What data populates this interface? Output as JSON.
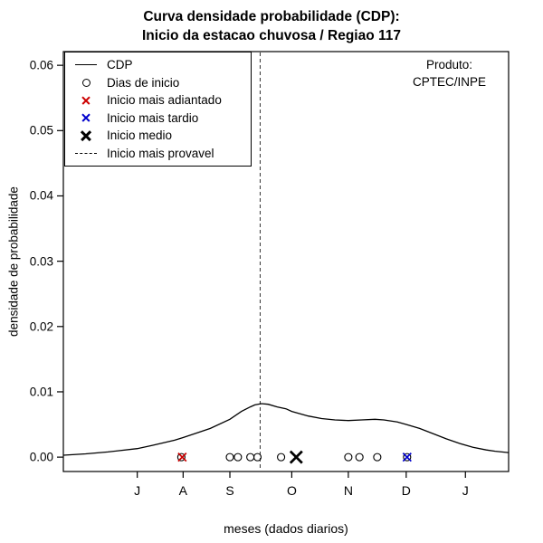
{
  "colors": {
    "red": "#cc0000",
    "blue": "#0000cc",
    "black": "#000000",
    "dashed_line": "#333333"
  },
  "chart_data": {
    "type": "line",
    "title": "Curva densidade probabilidade (CDP): Inicio da estacao chuvosa / Regiao 117",
    "title_lines": [
      "Curva densidade probabilidade (CDP):",
      "Inicio da estacao chuvosa / Regiao 117"
    ],
    "xlabel": "meses (dados diarios)",
    "ylabel": "densidade de probabilidade",
    "annotation_lines": [
      "Produto:",
      "CPTEC/INPE"
    ],
    "y_ticks": [
      0,
      0.01,
      0.02,
      0.03,
      0.04,
      0.05,
      0.06
    ],
    "ylim": [
      -0.0022,
      0.0621
    ],
    "x_ticks": [
      {
        "label": "J",
        "pos": 0.166
      },
      {
        "label": "A",
        "pos": 0.269
      },
      {
        "label": "S",
        "pos": 0.374
      },
      {
        "label": "O",
        "pos": 0.513
      },
      {
        "label": "N",
        "pos": 0.64
      },
      {
        "label": "D",
        "pos": 0.77
      },
      {
        "label": "J",
        "pos": 0.903
      }
    ],
    "curve": {
      "name": "CDP",
      "points": [
        [
          0.0,
          0.0003
        ],
        [
          0.05,
          0.0005
        ],
        [
          0.1,
          0.0008
        ],
        [
          0.166,
          0.0013
        ],
        [
          0.2,
          0.0018
        ],
        [
          0.25,
          0.0026
        ],
        [
          0.269,
          0.003
        ],
        [
          0.3,
          0.0037
        ],
        [
          0.33,
          0.0044
        ],
        [
          0.374,
          0.0058
        ],
        [
          0.4,
          0.007
        ],
        [
          0.42,
          0.0077
        ],
        [
          0.43,
          0.008
        ],
        [
          0.445,
          0.0082
        ],
        [
          0.46,
          0.0081
        ],
        [
          0.48,
          0.0077
        ],
        [
          0.5,
          0.0074
        ],
        [
          0.513,
          0.007
        ],
        [
          0.55,
          0.0063
        ],
        [
          0.58,
          0.0059
        ],
        [
          0.61,
          0.0057
        ],
        [
          0.64,
          0.0056
        ],
        [
          0.67,
          0.0057
        ],
        [
          0.7,
          0.0058
        ],
        [
          0.72,
          0.0057
        ],
        [
          0.75,
          0.0054
        ],
        [
          0.77,
          0.005
        ],
        [
          0.8,
          0.0044
        ],
        [
          0.83,
          0.0036
        ],
        [
          0.86,
          0.0028
        ],
        [
          0.89,
          0.0021
        ],
        [
          0.92,
          0.0015
        ],
        [
          0.95,
          0.0011
        ],
        [
          0.97,
          0.0009
        ],
        [
          1.0,
          0.0007
        ]
      ]
    },
    "most_probable_line_pos": 0.442,
    "onset_days_pos": [
      0.265,
      0.374,
      0.392,
      0.42,
      0.436,
      0.489,
      0.64,
      0.665,
      0.705,
      0.772
    ],
    "earliest_onset": {
      "pos": 0.267,
      "color": "#cc0000"
    },
    "latest_onset": {
      "pos": 0.772,
      "color": "#0000cc"
    },
    "mean_onset": {
      "pos": 0.523,
      "color": "#000000"
    },
    "legend": [
      {
        "symbol": "line",
        "label": "CDP"
      },
      {
        "symbol": "circle",
        "label": "Dias de inicio"
      },
      {
        "symbol": "x-red",
        "label": "Inicio mais adiantado"
      },
      {
        "symbol": "x-blue",
        "label": "Inicio mais tardio"
      },
      {
        "symbol": "X-black",
        "label": "Inicio medio"
      },
      {
        "symbol": "dashed",
        "label": "Inicio mais provavel"
      }
    ]
  }
}
